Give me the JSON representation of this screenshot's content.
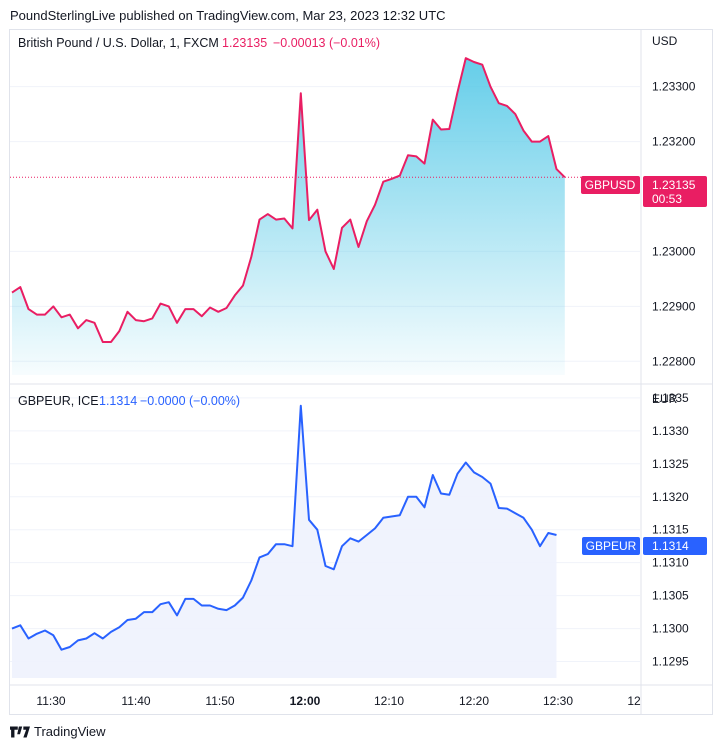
{
  "header": {
    "text": "PoundSterlingLive published on TradingView.com, Mar 23, 2023 12:32 UTC"
  },
  "footer": {
    "brand": "TradingView"
  },
  "colors": {
    "gbpusd_line": "#e91e63",
    "gbpusd_fill_top": "#5dcbe8",
    "gbpusd_fill_bottom": "#ffffff",
    "gbpeur_line": "#2962ff",
    "gbpeur_fill": "#eef2fd",
    "grid": "#f0f3fa",
    "axis_text": "#131722"
  },
  "chart_data": [
    {
      "type": "area",
      "title": "British Pound / U.S. Dollar, 1, FXCM",
      "last_price": "1.23135",
      "change": "−0.00013 (−0.01%)",
      "currency": "USD",
      "price_label_symbol": "GBPUSD",
      "price_label_value": "1.23135",
      "countdown": "00:53",
      "yticks": [
        "1.23300",
        "1.23200",
        "1.23000",
        "1.22900",
        "1.22800"
      ],
      "ylim": [
        1.22775,
        1.23385
      ],
      "series": [
        {
          "values": [
            1.22925,
            1.22935,
            1.22895,
            1.22885,
            1.22885,
            1.229,
            1.2288,
            1.22885,
            1.2286,
            1.22875,
            1.2287,
            1.22835,
            1.22835,
            1.22855,
            1.2289,
            1.22875,
            1.22873,
            1.22878,
            1.22905,
            1.229,
            1.2287,
            1.22895,
            1.22895,
            1.22882,
            1.22898,
            1.2289,
            1.22897,
            1.2292,
            1.22938,
            1.2299,
            1.23058,
            1.23068,
            1.23058,
            1.2306,
            1.23042,
            1.23288,
            1.23057,
            1.23076,
            1.23,
            1.22968,
            1.23043,
            1.23058,
            1.23008,
            1.23055,
            1.23085,
            1.23127,
            1.23132,
            1.23138,
            1.23175,
            1.23173,
            1.2316,
            1.2324,
            1.23222,
            1.23223,
            1.2329,
            1.23352,
            1.23345,
            1.2334,
            1.233,
            1.2327,
            1.23265,
            1.2325,
            1.2322,
            1.232,
            1.232,
            1.2321,
            1.2315,
            1.23135
          ]
        }
      ]
    },
    {
      "type": "area",
      "title": "GBPEUR, ICE",
      "last_price": "1.1314",
      "change": "−0.0000 (−0.00%)",
      "currency": "EUR",
      "price_label_symbol": "GBPEUR",
      "price_label_value": "1.1314",
      "yticks": [
        "1.1335",
        "1.1330",
        "1.1325",
        "1.1320",
        "1.1315",
        "1.1310",
        "1.1305",
        "1.1300",
        "1.1295"
      ],
      "ylim": [
        1.12925,
        1.13365
      ],
      "series": [
        {
          "values": [
            1.13,
            1.13005,
            1.12985,
            1.12992,
            1.12997,
            1.1299,
            1.12968,
            1.12972,
            1.12982,
            1.12985,
            1.12993,
            1.12985,
            1.12995,
            1.13002,
            1.13013,
            1.13015,
            1.13025,
            1.13025,
            1.13037,
            1.1304,
            1.1302,
            1.13045,
            1.13045,
            1.13035,
            1.13035,
            1.1303,
            1.13028,
            1.13035,
            1.13047,
            1.13073,
            1.13108,
            1.13113,
            1.13128,
            1.13128,
            1.13125,
            1.13338,
            1.13165,
            1.1315,
            1.13095,
            1.1309,
            1.13125,
            1.13137,
            1.13132,
            1.13142,
            1.13152,
            1.13168,
            1.1317,
            1.13172,
            1.132,
            1.132,
            1.13184,
            1.13233,
            1.13205,
            1.13203,
            1.13235,
            1.13252,
            1.13237,
            1.1323,
            1.1322,
            1.13183,
            1.13182,
            1.13175,
            1.13168,
            1.1315,
            1.13125,
            1.13145,
            1.13142
          ]
        }
      ]
    }
  ],
  "xticks": [
    {
      "label": "11:30",
      "bold": false
    },
    {
      "label": "11:40",
      "bold": false
    },
    {
      "label": "11:50",
      "bold": false
    },
    {
      "label": "12:00",
      "bold": true
    },
    {
      "label": "12:10",
      "bold": false
    },
    {
      "label": "12:20",
      "bold": false
    },
    {
      "label": "12:30",
      "bold": false
    },
    {
      "label": "12",
      "bold": false
    }
  ]
}
